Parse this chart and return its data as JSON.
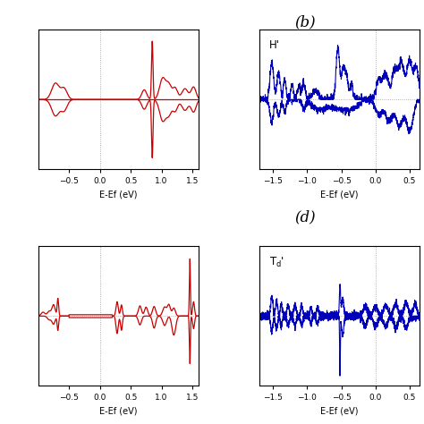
{
  "title_b": "(b)",
  "title_d": "(d)",
  "label_H": "H'",
  "xlabel": "E-Ef (eV)",
  "red_color": "#cc0000",
  "blue_color": "#0000bb",
  "xlim_red": [
    -1.0,
    1.6
  ],
  "xlim_blue": [
    -1.7,
    0.65
  ],
  "grid_color": "#999999"
}
